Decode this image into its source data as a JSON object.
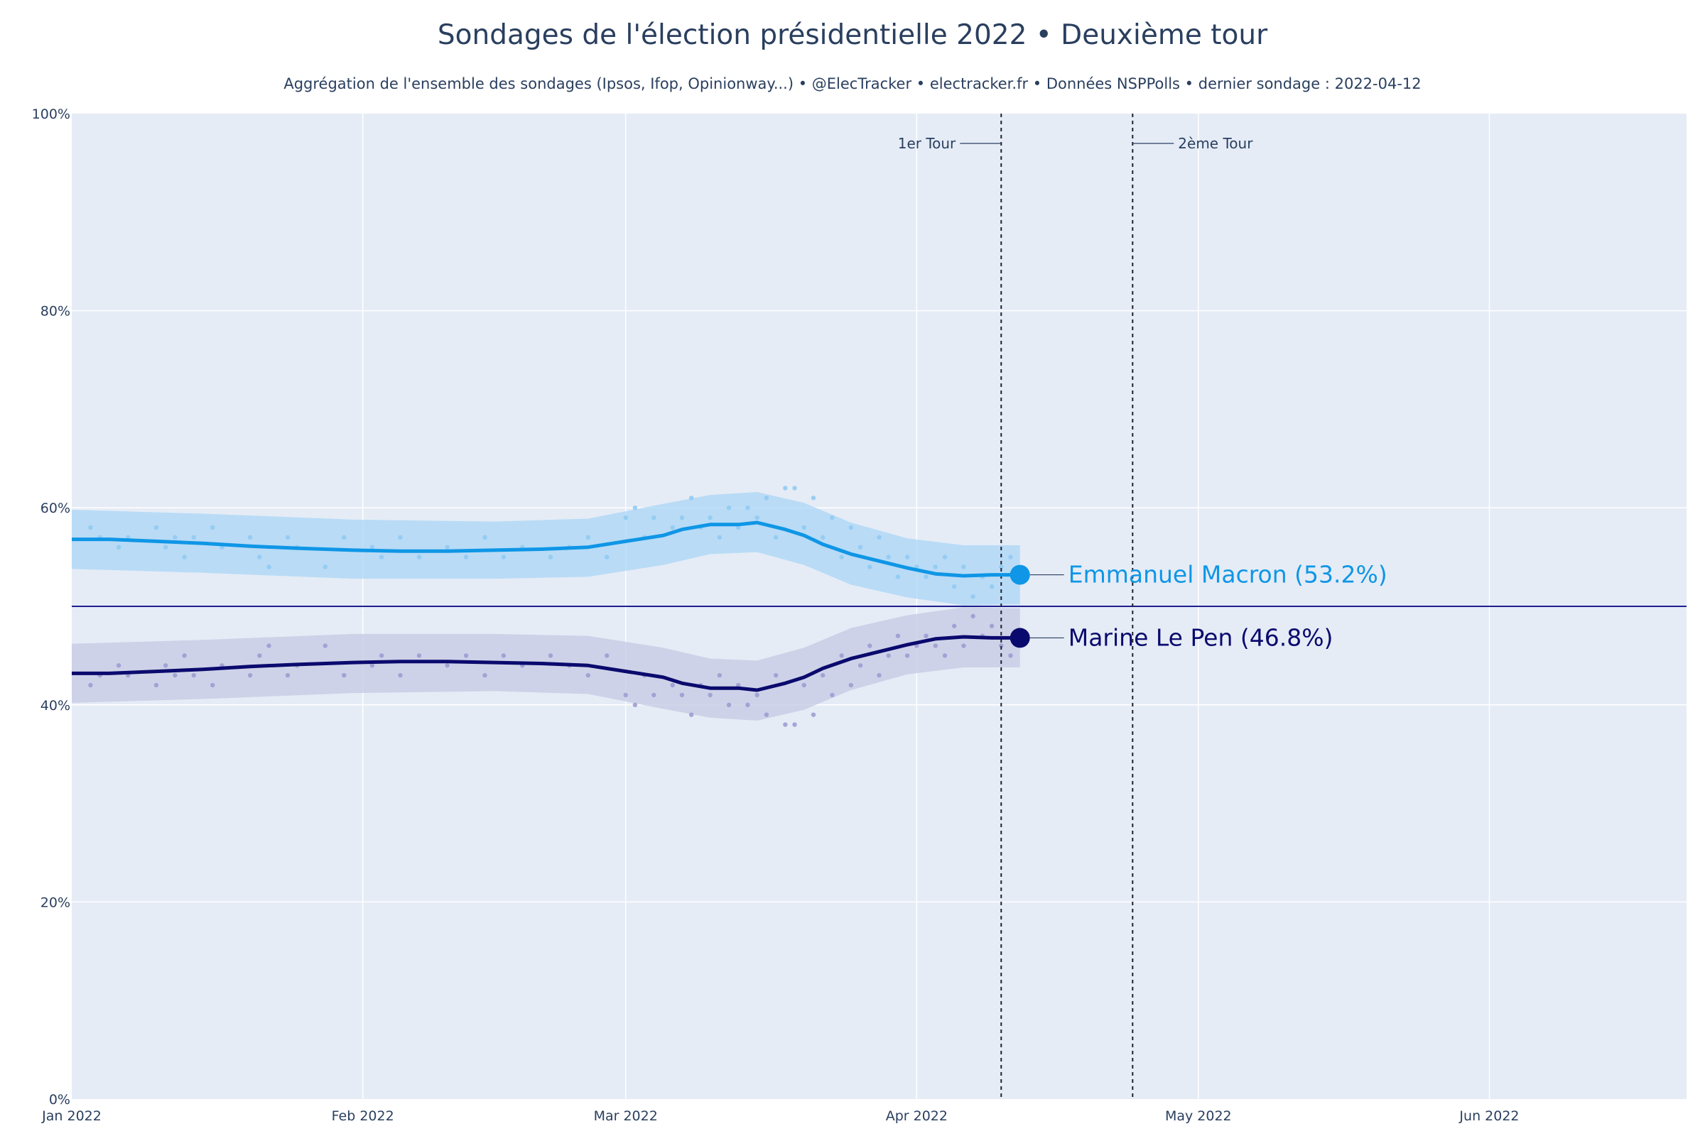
{
  "chart_data": {
    "type": "line",
    "title": "Sondages de l'élection présidentielle 2022 • Deuxième tour",
    "subtitle": "Aggrégation de l'ensemble des sondages (Ipsos, Ifop, Opinionway...) • @ElecTracker • electracker.fr • Données NSPPolls • dernier sondage : 2022-04-12",
    "xlim": [
      "2022-01-01",
      "2022-06-22"
    ],
    "ylim": [
      0,
      100
    ],
    "x_ticks": [
      {
        "date": "2022-01-01",
        "label": "Jan 2022"
      },
      {
        "date": "2022-02-01",
        "label": "Feb 2022"
      },
      {
        "date": "2022-03-01",
        "label": "Mar 2022"
      },
      {
        "date": "2022-04-01",
        "label": "Apr 2022"
      },
      {
        "date": "2022-05-01",
        "label": "May 2022"
      },
      {
        "date": "2022-06-01",
        "label": "Jun 2022"
      }
    ],
    "y_ticks": [
      {
        "value": 0,
        "label": "0%"
      },
      {
        "value": 20,
        "label": "20%"
      },
      {
        "value": 40,
        "label": "40%"
      },
      {
        "value": 60,
        "label": "60%"
      },
      {
        "value": 80,
        "label": "80%"
      },
      {
        "value": 100,
        "label": "100%"
      }
    ],
    "grid": true,
    "reference_line": {
      "y": 50,
      "color": "#000080"
    },
    "vertical_markers": [
      {
        "date": "2022-04-10",
        "label": "1er Tour"
      },
      {
        "date": "2022-04-24",
        "label": "2ème Tour"
      }
    ],
    "series": [
      {
        "name": "Emmanuel Macron",
        "end_label": "Emmanuel Macron (53.2%)",
        "color": "#0f96e6",
        "band_color": "#aad5f5",
        "dot_color": "#8ec9f2",
        "trend": [
          [
            "2022-01-01",
            56.8
          ],
          [
            "2022-01-05",
            56.8
          ],
          [
            "2022-01-10",
            56.6
          ],
          [
            "2022-01-15",
            56.4
          ],
          [
            "2022-01-20",
            56.1
          ],
          [
            "2022-01-25",
            55.9
          ],
          [
            "2022-01-31",
            55.7
          ],
          [
            "2022-02-05",
            55.6
          ],
          [
            "2022-02-10",
            55.6
          ],
          [
            "2022-02-15",
            55.7
          ],
          [
            "2022-02-20",
            55.8
          ],
          [
            "2022-02-25",
            56.0
          ],
          [
            "2022-03-01",
            56.6
          ],
          [
            "2022-03-05",
            57.2
          ],
          [
            "2022-03-07",
            57.8
          ],
          [
            "2022-03-10",
            58.3
          ],
          [
            "2022-03-13",
            58.3
          ],
          [
            "2022-03-15",
            58.5
          ],
          [
            "2022-03-18",
            57.8
          ],
          [
            "2022-03-20",
            57.2
          ],
          [
            "2022-03-22",
            56.3
          ],
          [
            "2022-03-25",
            55.3
          ],
          [
            "2022-03-28",
            54.6
          ],
          [
            "2022-03-31",
            53.9
          ],
          [
            "2022-04-03",
            53.3
          ],
          [
            "2022-04-06",
            53.1
          ],
          [
            "2022-04-09",
            53.2
          ],
          [
            "2022-04-12",
            53.2
          ]
        ],
        "band_upper": [
          [
            "2022-01-01",
            59.8
          ],
          [
            "2022-01-15",
            59.4
          ],
          [
            "2022-01-31",
            58.8
          ],
          [
            "2022-02-15",
            58.6
          ],
          [
            "2022-02-25",
            58.9
          ],
          [
            "2022-03-05",
            60.4
          ],
          [
            "2022-03-10",
            61.3
          ],
          [
            "2022-03-15",
            61.6
          ],
          [
            "2022-03-20",
            60.5
          ],
          [
            "2022-03-25",
            58.5
          ],
          [
            "2022-03-31",
            56.9
          ],
          [
            "2022-04-06",
            56.2
          ],
          [
            "2022-04-12",
            56.2
          ]
        ],
        "band_lower": [
          [
            "2022-01-01",
            53.8
          ],
          [
            "2022-01-15",
            53.4
          ],
          [
            "2022-01-31",
            52.8
          ],
          [
            "2022-02-15",
            52.8
          ],
          [
            "2022-02-25",
            53.0
          ],
          [
            "2022-03-05",
            54.2
          ],
          [
            "2022-03-10",
            55.3
          ],
          [
            "2022-03-15",
            55.5
          ],
          [
            "2022-03-20",
            54.2
          ],
          [
            "2022-03-25",
            52.2
          ],
          [
            "2022-03-31",
            50.9
          ],
          [
            "2022-04-06",
            50.1
          ],
          [
            "2022-04-12",
            50.2
          ]
        ],
        "polls": [
          [
            "2022-01-03",
            58
          ],
          [
            "2022-01-04",
            57
          ],
          [
            "2022-01-06",
            56
          ],
          [
            "2022-01-07",
            57
          ],
          [
            "2022-01-10",
            58
          ],
          [
            "2022-01-11",
            56
          ],
          [
            "2022-01-12",
            57
          ],
          [
            "2022-01-13",
            55
          ],
          [
            "2022-01-14",
            57
          ],
          [
            "2022-01-16",
            58
          ],
          [
            "2022-01-17",
            56
          ],
          [
            "2022-01-20",
            57
          ],
          [
            "2022-01-21",
            55
          ],
          [
            "2022-01-22",
            54
          ],
          [
            "2022-01-24",
            57
          ],
          [
            "2022-01-25",
            56
          ],
          [
            "2022-01-28",
            54
          ],
          [
            "2022-01-30",
            57
          ],
          [
            "2022-02-02",
            56
          ],
          [
            "2022-02-03",
            55
          ],
          [
            "2022-02-05",
            57
          ],
          [
            "2022-02-07",
            55
          ],
          [
            "2022-02-10",
            56
          ],
          [
            "2022-02-12",
            55
          ],
          [
            "2022-02-14",
            57
          ],
          [
            "2022-02-16",
            55
          ],
          [
            "2022-02-18",
            56
          ],
          [
            "2022-02-21",
            55
          ],
          [
            "2022-02-23",
            56
          ],
          [
            "2022-02-25",
            57
          ],
          [
            "2022-02-27",
            55
          ],
          [
            "2022-03-01",
            59
          ],
          [
            "2022-03-02",
            60
          ],
          [
            "2022-03-03",
            57
          ],
          [
            "2022-03-04",
            59
          ],
          [
            "2022-03-06",
            58
          ],
          [
            "2022-03-07",
            59
          ],
          [
            "2022-03-08",
            61
          ],
          [
            "2022-03-09",
            58
          ],
          [
            "2022-03-10",
            59
          ],
          [
            "2022-03-11",
            57
          ],
          [
            "2022-03-12",
            60
          ],
          [
            "2022-03-13",
            58
          ],
          [
            "2022-03-14",
            60
          ],
          [
            "2022-03-15",
            59
          ],
          [
            "2022-03-16",
            61
          ],
          [
            "2022-03-17",
            57
          ],
          [
            "2022-03-18",
            62
          ],
          [
            "2022-03-19",
            62
          ],
          [
            "2022-03-20",
            58
          ],
          [
            "2022-03-21",
            61
          ],
          [
            "2022-03-22",
            57
          ],
          [
            "2022-03-23",
            59
          ],
          [
            "2022-03-24",
            55
          ],
          [
            "2022-03-25",
            58
          ],
          [
            "2022-03-26",
            56
          ],
          [
            "2022-03-27",
            54
          ],
          [
            "2022-03-28",
            57
          ],
          [
            "2022-03-29",
            55
          ],
          [
            "2022-03-30",
            53
          ],
          [
            "2022-03-31",
            55
          ],
          [
            "2022-04-01",
            54
          ],
          [
            "2022-04-02",
            53
          ],
          [
            "2022-04-03",
            54
          ],
          [
            "2022-04-04",
            55
          ],
          [
            "2022-04-05",
            52
          ],
          [
            "2022-04-06",
            54
          ],
          [
            "2022-04-07",
            51
          ],
          [
            "2022-04-08",
            53
          ],
          [
            "2022-04-09",
            52
          ],
          [
            "2022-04-10",
            54
          ],
          [
            "2022-04-11",
            55
          ],
          [
            "2022-04-12",
            53
          ]
        ]
      },
      {
        "name": "Marine Le Pen",
        "end_label": "Marine Le Pen (46.8%)",
        "color": "#0a0a6e",
        "band_color": "#c6c9e3",
        "dot_color": "#9a9ad0",
        "trend": [
          [
            "2022-01-01",
            43.2
          ],
          [
            "2022-01-05",
            43.2
          ],
          [
            "2022-01-10",
            43.4
          ],
          [
            "2022-01-15",
            43.6
          ],
          [
            "2022-01-20",
            43.9
          ],
          [
            "2022-01-25",
            44.1
          ],
          [
            "2022-01-31",
            44.3
          ],
          [
            "2022-02-05",
            44.4
          ],
          [
            "2022-02-10",
            44.4
          ],
          [
            "2022-02-15",
            44.3
          ],
          [
            "2022-02-20",
            44.2
          ],
          [
            "2022-02-25",
            44.0
          ],
          [
            "2022-03-01",
            43.4
          ],
          [
            "2022-03-05",
            42.8
          ],
          [
            "2022-03-07",
            42.2
          ],
          [
            "2022-03-10",
            41.7
          ],
          [
            "2022-03-13",
            41.7
          ],
          [
            "2022-03-15",
            41.5
          ],
          [
            "2022-03-18",
            42.2
          ],
          [
            "2022-03-20",
            42.8
          ],
          [
            "2022-03-22",
            43.7
          ],
          [
            "2022-03-25",
            44.7
          ],
          [
            "2022-03-28",
            45.4
          ],
          [
            "2022-03-31",
            46.1
          ],
          [
            "2022-04-03",
            46.7
          ],
          [
            "2022-04-06",
            46.9
          ],
          [
            "2022-04-09",
            46.8
          ],
          [
            "2022-04-12",
            46.8
          ]
        ],
        "band_upper": [
          [
            "2022-01-01",
            46.2
          ],
          [
            "2022-01-15",
            46.6
          ],
          [
            "2022-01-31",
            47.2
          ],
          [
            "2022-02-15",
            47.2
          ],
          [
            "2022-02-25",
            47.0
          ],
          [
            "2022-03-05",
            45.8
          ],
          [
            "2022-03-10",
            44.7
          ],
          [
            "2022-03-15",
            44.5
          ],
          [
            "2022-03-20",
            45.8
          ],
          [
            "2022-03-25",
            47.8
          ],
          [
            "2022-03-31",
            49.1
          ],
          [
            "2022-04-06",
            49.9
          ],
          [
            "2022-04-12",
            49.8
          ]
        ],
        "band_lower": [
          [
            "2022-01-01",
            40.2
          ],
          [
            "2022-01-15",
            40.6
          ],
          [
            "2022-01-31",
            41.2
          ],
          [
            "2022-02-15",
            41.4
          ],
          [
            "2022-02-25",
            41.1
          ],
          [
            "2022-03-05",
            39.6
          ],
          [
            "2022-03-10",
            38.7
          ],
          [
            "2022-03-15",
            38.4
          ],
          [
            "2022-03-20",
            39.5
          ],
          [
            "2022-03-25",
            41.5
          ],
          [
            "2022-03-31",
            43.1
          ],
          [
            "2022-04-06",
            43.8
          ],
          [
            "2022-04-12",
            43.8
          ]
        ],
        "polls": [
          [
            "2022-01-03",
            42
          ],
          [
            "2022-01-04",
            43
          ],
          [
            "2022-01-06",
            44
          ],
          [
            "2022-01-07",
            43
          ],
          [
            "2022-01-10",
            42
          ],
          [
            "2022-01-11",
            44
          ],
          [
            "2022-01-12",
            43
          ],
          [
            "2022-01-13",
            45
          ],
          [
            "2022-01-14",
            43
          ],
          [
            "2022-01-16",
            42
          ],
          [
            "2022-01-17",
            44
          ],
          [
            "2022-01-20",
            43
          ],
          [
            "2022-01-21",
            45
          ],
          [
            "2022-01-22",
            46
          ],
          [
            "2022-01-24",
            43
          ],
          [
            "2022-01-25",
            44
          ],
          [
            "2022-01-28",
            46
          ],
          [
            "2022-01-30",
            43
          ],
          [
            "2022-02-02",
            44
          ],
          [
            "2022-02-03",
            45
          ],
          [
            "2022-02-05",
            43
          ],
          [
            "2022-02-07",
            45
          ],
          [
            "2022-02-10",
            44
          ],
          [
            "2022-02-12",
            45
          ],
          [
            "2022-02-14",
            43
          ],
          [
            "2022-02-16",
            45
          ],
          [
            "2022-02-18",
            44
          ],
          [
            "2022-02-21",
            45
          ],
          [
            "2022-02-23",
            44
          ],
          [
            "2022-02-25",
            43
          ],
          [
            "2022-02-27",
            45
          ],
          [
            "2022-03-01",
            41
          ],
          [
            "2022-03-02",
            40
          ],
          [
            "2022-03-03",
            43
          ],
          [
            "2022-03-04",
            41
          ],
          [
            "2022-03-06",
            42
          ],
          [
            "2022-03-07",
            41
          ],
          [
            "2022-03-08",
            39
          ],
          [
            "2022-03-09",
            42
          ],
          [
            "2022-03-10",
            41
          ],
          [
            "2022-03-11",
            43
          ],
          [
            "2022-03-12",
            40
          ],
          [
            "2022-03-13",
            42
          ],
          [
            "2022-03-14",
            40
          ],
          [
            "2022-03-15",
            41
          ],
          [
            "2022-03-16",
            39
          ],
          [
            "2022-03-17",
            43
          ],
          [
            "2022-03-18",
            38
          ],
          [
            "2022-03-19",
            38
          ],
          [
            "2022-03-20",
            42
          ],
          [
            "2022-03-21",
            39
          ],
          [
            "2022-03-22",
            43
          ],
          [
            "2022-03-23",
            41
          ],
          [
            "2022-03-24",
            45
          ],
          [
            "2022-03-25",
            42
          ],
          [
            "2022-03-26",
            44
          ],
          [
            "2022-03-27",
            46
          ],
          [
            "2022-03-28",
            43
          ],
          [
            "2022-03-29",
            45
          ],
          [
            "2022-03-30",
            47
          ],
          [
            "2022-03-31",
            45
          ],
          [
            "2022-04-01",
            46
          ],
          [
            "2022-04-02",
            47
          ],
          [
            "2022-04-03",
            46
          ],
          [
            "2022-04-04",
            45
          ],
          [
            "2022-04-05",
            48
          ],
          [
            "2022-04-06",
            46
          ],
          [
            "2022-04-07",
            49
          ],
          [
            "2022-04-08",
            47
          ],
          [
            "2022-04-09",
            48
          ],
          [
            "2022-04-10",
            46
          ],
          [
            "2022-04-11",
            45
          ],
          [
            "2022-04-12",
            47
          ]
        ]
      }
    ]
  }
}
